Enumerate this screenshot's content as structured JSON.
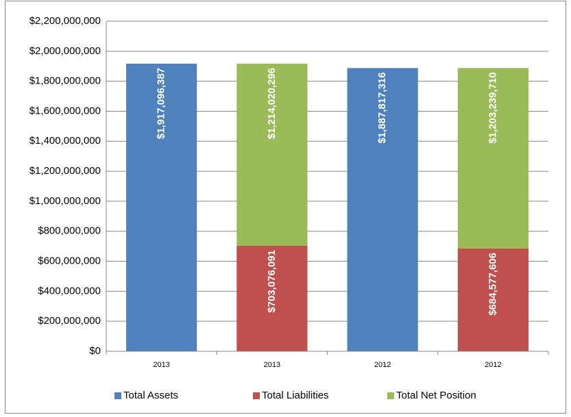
{
  "chart_data": {
    "type": "stacked_bar",
    "categories": [
      "2013",
      "2013",
      "2012",
      "2012"
    ],
    "series": [
      {
        "name": "Total Assets",
        "color": "#4f81bd",
        "values": [
          1917096387,
          null,
          1887817316,
          null
        ],
        "value_labels": [
          "$1,917,096,387",
          null,
          "$1,887,817,316",
          null
        ]
      },
      {
        "name": "Total Liabilities",
        "color": "#c0504d",
        "values": [
          null,
          703076091,
          null,
          684577606
        ],
        "value_labels": [
          null,
          "$703,076,091",
          null,
          "$684,577,606"
        ]
      },
      {
        "name": "Total Net Position",
        "color": "#9bbb59",
        "values": [
          null,
          1214020296,
          null,
          1203239710
        ],
        "value_labels": [
          null,
          "$1,214,020,296",
          null,
          "$1,203,239,710"
        ]
      }
    ],
    "ylim": [
      0,
      2200000000
    ],
    "yticks": [
      {
        "value": 0,
        "label": "$0"
      },
      {
        "value": 200000000,
        "label": "$200,000,000"
      },
      {
        "value": 400000000,
        "label": "$400,000,000"
      },
      {
        "value": 600000000,
        "label": "$600,000,000"
      },
      {
        "value": 800000000,
        "label": "$800,000,000"
      },
      {
        "value": 1000000000,
        "label": "$1,000,000,000"
      },
      {
        "value": 1200000000,
        "label": "$1,200,000,000"
      },
      {
        "value": 1400000000,
        "label": "$1,400,000,000"
      },
      {
        "value": 1600000000,
        "label": "$1,600,000,000"
      },
      {
        "value": 1800000000,
        "label": "$1,800,000,000"
      },
      {
        "value": 2000000000,
        "label": "$2,000,000,000"
      },
      {
        "value": 2200000000,
        "label": "$2,200,000,000"
      }
    ],
    "grid": true,
    "legend": "bottom"
  }
}
